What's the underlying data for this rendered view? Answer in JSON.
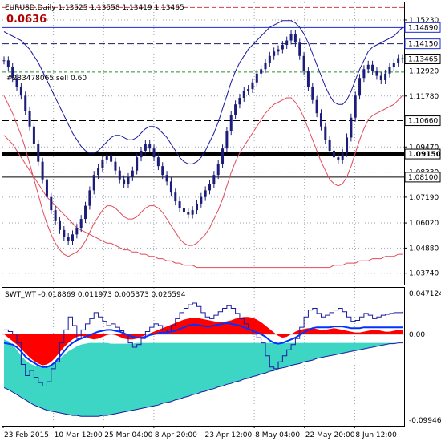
{
  "header": {
    "title": "EURUSD,Daily 1.13525 1.13558 1.13419 1.13465",
    "spread": "0.0636",
    "order_label": "#283478065 sell 0.60"
  },
  "colors": {
    "background": "#ffffff",
    "candles": "#1c1c7a",
    "envelope": "#e24a5a",
    "ma": "#1a1aa0",
    "level_dark": "#000000",
    "level_blue": "#1a2bd1",
    "order_green": "#2e8b2e",
    "osc_fill_red": "#ff0000",
    "osc_fill_cyan": "#3dd6c4",
    "osc_line": "#1a1aa0",
    "osc_signal": "#0033ff"
  },
  "price_axis": {
    "ticks": [
      "1.15230",
      "1.12920",
      "1.11780",
      "1.09470",
      "1.08330",
      "1.07190",
      "1.06020",
      "1.04880",
      "1.03740"
    ],
    "highlight_labels": [
      {
        "text": "1.14890",
        "style": "blue"
      },
      {
        "text": "1.14150",
        "style": "blue"
      },
      {
        "text": "1.13465",
        "style": "dark"
      },
      {
        "text": "1.10660",
        "style": "dark"
      },
      {
        "text": "1.09150",
        "style": "thick"
      },
      {
        "text": "1.08100",
        "style": "dark"
      }
    ]
  },
  "indicator": {
    "label": "SWT_WT -0.018869 0.011973 0.005373 0.025594",
    "ticks": [
      "0.047124",
      "0.00",
      "-0.099468"
    ]
  },
  "time_axis": [
    "23 Feb 2015",
    "10 Mar 12:00",
    "25 Mar 04:00",
    "8 Apr 20:00",
    "23 Apr 12:00",
    "8 May 04:00",
    "22 May 20:00",
    "8 Jun 12:00"
  ],
  "chart_data": {
    "type": "line",
    "title": "EURUSD,Daily",
    "y_range": [
      1.0322,
      1.1603
    ],
    "levels": [
      1.1489,
      1.1415,
      1.13465,
      1.1066,
      1.0915,
      1.081
    ],
    "order_level": 1.1287,
    "price_close": [
      1.134,
      1.131,
      1.126,
      1.122,
      1.118,
      1.111,
      1.104,
      1.096,
      1.088,
      1.08,
      1.072,
      1.066,
      1.061,
      1.057,
      1.054,
      1.052,
      1.055,
      1.058,
      1.062,
      1.068,
      1.075,
      1.082,
      1.085,
      1.089,
      1.091,
      1.088,
      1.084,
      1.08,
      1.078,
      1.081,
      1.084,
      1.09,
      1.093,
      1.096,
      1.094,
      1.09,
      1.086,
      1.082,
      1.079,
      1.074,
      1.07,
      1.067,
      1.065,
      1.064,
      1.066,
      1.069,
      1.072,
      1.075,
      1.078,
      1.082,
      1.087,
      1.094,
      1.102,
      1.109,
      1.114,
      1.117,
      1.12,
      1.121,
      1.124,
      1.128,
      1.13,
      1.133,
      1.136,
      1.138,
      1.139,
      1.141,
      1.143,
      1.146,
      1.142,
      1.136,
      1.129,
      1.122,
      1.116,
      1.11,
      1.104,
      1.098,
      1.093,
      1.09,
      1.089,
      1.092,
      1.099,
      1.108,
      1.118,
      1.126,
      1.13,
      1.132,
      1.129,
      1.127,
      1.125,
      1.128,
      1.131,
      1.133,
      1.135,
      1.13465
    ],
    "upper_band": [
      1.147,
      1.146,
      1.145,
      1.144,
      1.143,
      1.141,
      1.139,
      1.136,
      1.133,
      1.129,
      1.125,
      1.121,
      1.117,
      1.113,
      1.109,
      1.105,
      1.101,
      1.098,
      1.095,
      1.093,
      1.092,
      1.092,
      1.093,
      1.095,
      1.097,
      1.099,
      1.1,
      1.1,
      1.099,
      1.098,
      1.098,
      1.099,
      1.101,
      1.103,
      1.104,
      1.104,
      1.103,
      1.101,
      1.099,
      1.096,
      1.093,
      1.09,
      1.088,
      1.087,
      1.087,
      1.088,
      1.09,
      1.093,
      1.097,
      1.101,
      1.106,
      1.112,
      1.118,
      1.124,
      1.129,
      1.133,
      1.136,
      1.139,
      1.141,
      1.143,
      1.145,
      1.147,
      1.149,
      1.15,
      1.151,
      1.152,
      1.152,
      1.152,
      1.151,
      1.149,
      1.146,
      1.142,
      1.137,
      1.132,
      1.127,
      1.122,
      1.118,
      1.115,
      1.114,
      1.114,
      1.116,
      1.12,
      1.125,
      1.13,
      1.134,
      1.138,
      1.14,
      1.141,
      1.142,
      1.143,
      1.144,
      1.145,
      1.147,
      1.149
    ],
    "lower_band": [
      1.118,
      1.114,
      1.11,
      1.105,
      1.1,
      1.094,
      1.087,
      1.08,
      1.073,
      1.066,
      1.06,
      1.055,
      1.051,
      1.048,
      1.046,
      1.045,
      1.046,
      1.047,
      1.049,
      1.052,
      1.056,
      1.06,
      1.063,
      1.066,
      1.068,
      1.068,
      1.067,
      1.065,
      1.063,
      1.062,
      1.062,
      1.063,
      1.065,
      1.067,
      1.068,
      1.068,
      1.067,
      1.065,
      1.062,
      1.059,
      1.056,
      1.053,
      1.051,
      1.05,
      1.05,
      1.051,
      1.053,
      1.055,
      1.058,
      1.062,
      1.066,
      1.071,
      1.077,
      1.083,
      1.088,
      1.092,
      1.095,
      1.098,
      1.101,
      1.104,
      1.107,
      1.11,
      1.112,
      1.114,
      1.115,
      1.116,
      1.117,
      1.117,
      1.115,
      1.112,
      1.108,
      1.103,
      1.098,
      1.093,
      1.088,
      1.084,
      1.08,
      1.078,
      1.077,
      1.078,
      1.081,
      1.086,
      1.092,
      1.098,
      1.103,
      1.107,
      1.109,
      1.11,
      1.111,
      1.112,
      1.113,
      1.114,
      1.116,
      1.118
    ],
    "slow_ma": [
      1.1,
      1.098,
      1.096,
      1.093,
      1.09,
      1.087,
      1.084,
      1.081,
      1.078,
      1.075,
      1.072,
      1.07,
      1.068,
      1.066,
      1.064,
      1.062,
      1.06,
      1.058,
      1.057,
      1.056,
      1.055,
      1.054,
      1.053,
      1.052,
      1.051,
      1.051,
      1.05,
      1.049,
      1.048,
      1.048,
      1.047,
      1.047,
      1.046,
      1.046,
      1.045,
      1.045,
      1.044,
      1.044,
      1.043,
      1.043,
      1.042,
      1.042,
      1.041,
      1.041,
      1.041,
      1.04,
      1.04,
      1.04,
      1.04,
      1.04,
      1.04,
      1.04,
      1.04,
      1.04,
      1.04,
      1.04,
      1.04,
      1.04,
      1.04,
      1.04,
      1.04,
      1.04,
      1.04,
      1.04,
      1.04,
      1.04,
      1.04,
      1.04,
      1.04,
      1.04,
      1.04,
      1.04,
      1.04,
      1.04,
      1.04,
      1.04,
      1.04,
      1.041,
      1.041,
      1.041,
      1.042,
      1.042,
      1.042,
      1.043,
      1.043,
      1.043,
      1.044,
      1.044,
      1.044,
      1.045,
      1.045,
      1.045,
      1.046,
      1.046
    ],
    "osc_range": [
      -0.099468,
      0.047124
    ],
    "osc_red": [
      0.0,
      -0.004,
      -0.008,
      -0.012,
      -0.017,
      -0.022,
      -0.027,
      -0.031,
      -0.034,
      -0.036,
      -0.035,
      -0.032,
      -0.027,
      -0.021,
      -0.015,
      -0.01,
      -0.006,
      -0.003,
      -0.002,
      -0.003,
      -0.005,
      -0.006,
      -0.005,
      -0.003,
      -0.001,
      0.0,
      -0.001,
      -0.003,
      -0.005,
      -0.006,
      -0.006,
      -0.005,
      -0.003,
      -0.001,
      0.001,
      0.003,
      0.005,
      0.007,
      0.009,
      0.011,
      0.013,
      0.015,
      0.017,
      0.018,
      0.019,
      0.019,
      0.018,
      0.017,
      0.016,
      0.015,
      0.014,
      0.014,
      0.015,
      0.016,
      0.018,
      0.019,
      0.02,
      0.02,
      0.019,
      0.017,
      0.014,
      0.01,
      0.006,
      0.002,
      -0.002,
      -0.004,
      -0.003,
      0.0,
      0.003,
      0.005,
      0.006,
      0.007,
      0.007,
      0.006,
      0.005,
      0.005,
      0.006,
      0.007,
      0.006,
      0.005,
      0.004,
      0.003,
      0.002,
      0.002,
      0.003,
      0.004,
      0.005,
      0.005,
      0.004,
      0.003,
      0.003,
      0.004,
      0.005,
      0.005
    ],
    "osc_cyan": [
      -0.006,
      -0.008,
      -0.012,
      -0.018,
      -0.025,
      -0.03,
      -0.034,
      -0.036,
      -0.037,
      -0.038,
      -0.037,
      -0.035,
      -0.032,
      -0.028,
      -0.024,
      -0.02,
      -0.017,
      -0.014,
      -0.012,
      -0.011,
      -0.01,
      -0.01,
      -0.01,
      -0.01,
      -0.01,
      -0.011,
      -0.011,
      -0.011,
      -0.011,
      -0.011,
      -0.011,
      -0.01,
      -0.01,
      -0.01,
      -0.01,
      -0.01,
      -0.01,
      -0.01,
      -0.01,
      -0.01,
      -0.01,
      -0.01,
      -0.01,
      -0.01,
      -0.01,
      -0.01,
      -0.01,
      -0.01,
      -0.01,
      -0.01,
      -0.01,
      -0.01,
      -0.01,
      -0.01,
      -0.01,
      -0.01,
      -0.01,
      -0.01,
      -0.01,
      -0.01,
      -0.01,
      -0.01,
      -0.01,
      -0.01,
      -0.01,
      -0.01,
      -0.01,
      -0.01,
      -0.01,
      -0.01,
      -0.01,
      -0.01,
      -0.01,
      -0.01,
      -0.01,
      -0.01,
      -0.01,
      -0.01,
      -0.01,
      -0.01,
      -0.01,
      -0.01,
      -0.01,
      -0.01,
      -0.01,
      -0.01,
      -0.01,
      -0.01,
      -0.01,
      -0.01,
      -0.01,
      -0.01,
      -0.01,
      -0.01
    ],
    "osc_lower_envelope": [
      -0.062,
      -0.064,
      -0.067,
      -0.07,
      -0.073,
      -0.076,
      -0.079,
      -0.082,
      -0.084,
      -0.086,
      -0.088,
      -0.089,
      -0.09,
      -0.091,
      -0.092,
      -0.093,
      -0.094,
      -0.094,
      -0.095,
      -0.095,
      -0.095,
      -0.095,
      -0.095,
      -0.094,
      -0.094,
      -0.093,
      -0.092,
      -0.091,
      -0.09,
      -0.089,
      -0.088,
      -0.087,
      -0.086,
      -0.085,
      -0.084,
      -0.083,
      -0.082,
      -0.08,
      -0.079,
      -0.078,
      -0.076,
      -0.075,
      -0.073,
      -0.072,
      -0.07,
      -0.069,
      -0.067,
      -0.066,
      -0.064,
      -0.063,
      -0.061,
      -0.06,
      -0.058,
      -0.057,
      -0.055,
      -0.054,
      -0.052,
      -0.051,
      -0.049,
      -0.048,
      -0.046,
      -0.045,
      -0.043,
      -0.042,
      -0.04,
      -0.039,
      -0.038,
      -0.036,
      -0.035,
      -0.034,
      -0.032,
      -0.031,
      -0.03,
      -0.028,
      -0.027,
      -0.026,
      -0.025,
      -0.024,
      -0.023,
      -0.022,
      -0.021,
      -0.02,
      -0.019,
      -0.018,
      -0.017,
      -0.016,
      -0.015,
      -0.014,
      -0.013,
      -0.012,
      -0.011,
      -0.011,
      -0.01,
      -0.01
    ],
    "osc_fast": [
      0.005,
      0.003,
      0.0,
      -0.01,
      -0.035,
      -0.048,
      -0.042,
      -0.05,
      -0.056,
      -0.06,
      -0.055,
      -0.04,
      -0.032,
      -0.01,
      0.005,
      0.02,
      0.01,
      -0.005,
      0.005,
      0.012,
      0.018,
      0.025,
      0.02,
      0.015,
      0.01,
      0.012,
      0.008,
      0.004,
      0.0,
      -0.01,
      -0.015,
      -0.012,
      -0.005,
      0.003,
      0.008,
      0.012,
      0.01,
      0.005,
      0.003,
      0.01,
      0.018,
      0.025,
      0.03,
      0.034,
      0.036,
      0.032,
      0.025,
      0.02,
      0.018,
      0.022,
      0.026,
      0.03,
      0.033,
      0.03,
      0.024,
      0.018,
      0.012,
      0.005,
      0.0,
      -0.004,
      -0.01,
      -0.025,
      -0.038,
      -0.04,
      -0.032,
      -0.025,
      -0.018,
      -0.012,
      -0.005,
      0.008,
      0.02,
      0.028,
      0.03,
      0.024,
      0.02,
      0.022,
      0.025,
      0.028,
      0.03,
      0.026,
      0.02,
      0.015,
      0.016,
      0.02,
      0.024,
      0.022,
      0.018,
      0.02,
      0.022,
      0.023,
      0.024,
      0.025,
      0.025,
      0.026
    ],
    "osc_slow": [
      -0.01,
      -0.011,
      -0.012,
      -0.015,
      -0.02,
      -0.026,
      -0.03,
      -0.033,
      -0.036,
      -0.038,
      -0.038,
      -0.036,
      -0.032,
      -0.026,
      -0.02,
      -0.014,
      -0.01,
      -0.007,
      -0.005,
      -0.003,
      -0.001,
      0.001,
      0.003,
      0.004,
      0.005,
      0.005,
      0.004,
      0.003,
      0.001,
      -0.001,
      -0.003,
      -0.004,
      -0.004,
      -0.003,
      -0.001,
      0.0,
      0.001,
      0.002,
      0.002,
      0.003,
      0.004,
      0.006,
      0.008,
      0.01,
      0.011,
      0.011,
      0.01,
      0.009,
      0.009,
      0.01,
      0.011,
      0.012,
      0.013,
      0.012,
      0.011,
      0.01,
      0.008,
      0.006,
      0.004,
      0.002,
      0.0,
      -0.003,
      -0.007,
      -0.01,
      -0.011,
      -0.01,
      -0.008,
      -0.006,
      -0.004,
      -0.001,
      0.002,
      0.005,
      0.007,
      0.008,
      0.008,
      0.008,
      0.008,
      0.009,
      0.009,
      0.009,
      0.008,
      0.007,
      0.007,
      0.007,
      0.008,
      0.008,
      0.008,
      0.008,
      0.008,
      0.008,
      0.008,
      0.008,
      0.008,
      0.008
    ]
  }
}
